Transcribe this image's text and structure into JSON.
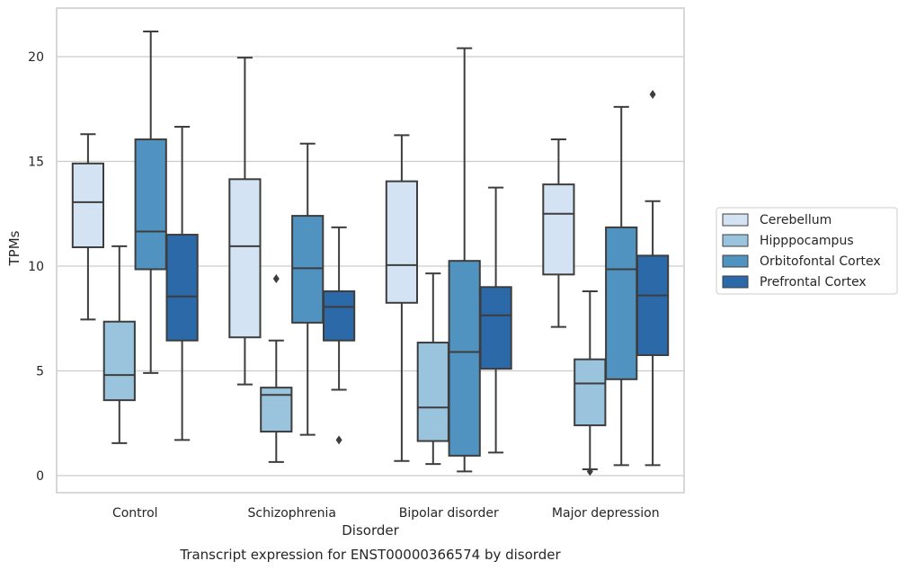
{
  "chart_data": {
    "type": "box",
    "xlabel": "Disorder",
    "ylabel": "TPMs",
    "caption": "Transcript expression for ENST00000366574 by disorder",
    "ylim": [
      -0.7,
      22.4
    ],
    "yticks": [
      0,
      5,
      10,
      15,
      20
    ],
    "grid": "horizontal",
    "legend_position": "right",
    "categories": [
      "Control",
      "Schizophrenia",
      "Bipolar disorder",
      "Major depression"
    ],
    "series": [
      {
        "name": "Cerebellum",
        "color": "#d4e3f3",
        "boxes": [
          {
            "whislo": 7.45,
            "q1": 10.9,
            "med": 13.05,
            "q3": 14.9,
            "whishi": 16.3,
            "fliers": []
          },
          {
            "whislo": 4.35,
            "q1": 6.6,
            "med": 10.95,
            "q3": 14.15,
            "whishi": 19.95,
            "fliers": []
          },
          {
            "whislo": 0.7,
            "q1": 8.25,
            "med": 10.05,
            "q3": 14.05,
            "whishi": 16.25,
            "fliers": []
          },
          {
            "whislo": 7.1,
            "q1": 9.6,
            "med": 12.5,
            "q3": 13.9,
            "whishi": 16.05,
            "fliers": []
          }
        ]
      },
      {
        "name": "Hipppocampus",
        "color": "#9ac3dd",
        "boxes": [
          {
            "whislo": 1.55,
            "q1": 3.6,
            "med": 4.8,
            "q3": 7.35,
            "whishi": 10.95,
            "fliers": []
          },
          {
            "whislo": 0.65,
            "q1": 2.1,
            "med": 3.85,
            "q3": 4.2,
            "whishi": 6.45,
            "fliers": [
              9.4
            ]
          },
          {
            "whislo": 0.55,
            "q1": 1.65,
            "med": 3.25,
            "q3": 6.35,
            "whishi": 9.65,
            "fliers": []
          },
          {
            "whislo": 0.3,
            "q1": 2.4,
            "med": 4.4,
            "q3": 5.55,
            "whishi": 8.8,
            "fliers": [
              0.2
            ]
          }
        ]
      },
      {
        "name": "Orbitofontal Cortex",
        "color": "#5193c0",
        "boxes": [
          {
            "whislo": 4.9,
            "q1": 9.85,
            "med": 11.65,
            "q3": 16.05,
            "whishi": 21.2,
            "fliers": []
          },
          {
            "whislo": 1.95,
            "q1": 7.3,
            "med": 9.9,
            "q3": 12.4,
            "whishi": 15.85,
            "fliers": []
          },
          {
            "whislo": 0.2,
            "q1": 0.95,
            "med": 5.9,
            "q3": 10.25,
            "whishi": 20.4,
            "fliers": []
          },
          {
            "whislo": 0.5,
            "q1": 4.6,
            "med": 9.85,
            "q3": 11.85,
            "whishi": 17.6,
            "fliers": []
          }
        ]
      },
      {
        "name": "Prefrontal Cortex",
        "color": "#2b69a8",
        "boxes": [
          {
            "whislo": 1.7,
            "q1": 6.45,
            "med": 8.55,
            "q3": 11.5,
            "whishi": 16.65,
            "fliers": []
          },
          {
            "whislo": 4.1,
            "q1": 6.45,
            "med": 8.05,
            "q3": 8.8,
            "whishi": 11.85,
            "fliers": [
              1.7
            ]
          },
          {
            "whislo": 1.1,
            "q1": 5.1,
            "med": 7.65,
            "q3": 9.0,
            "whishi": 13.75,
            "fliers": []
          },
          {
            "whislo": 0.5,
            "q1": 5.75,
            "med": 8.6,
            "q3": 10.5,
            "whishi": 13.1,
            "fliers": [
              18.2
            ]
          }
        ]
      }
    ]
  }
}
